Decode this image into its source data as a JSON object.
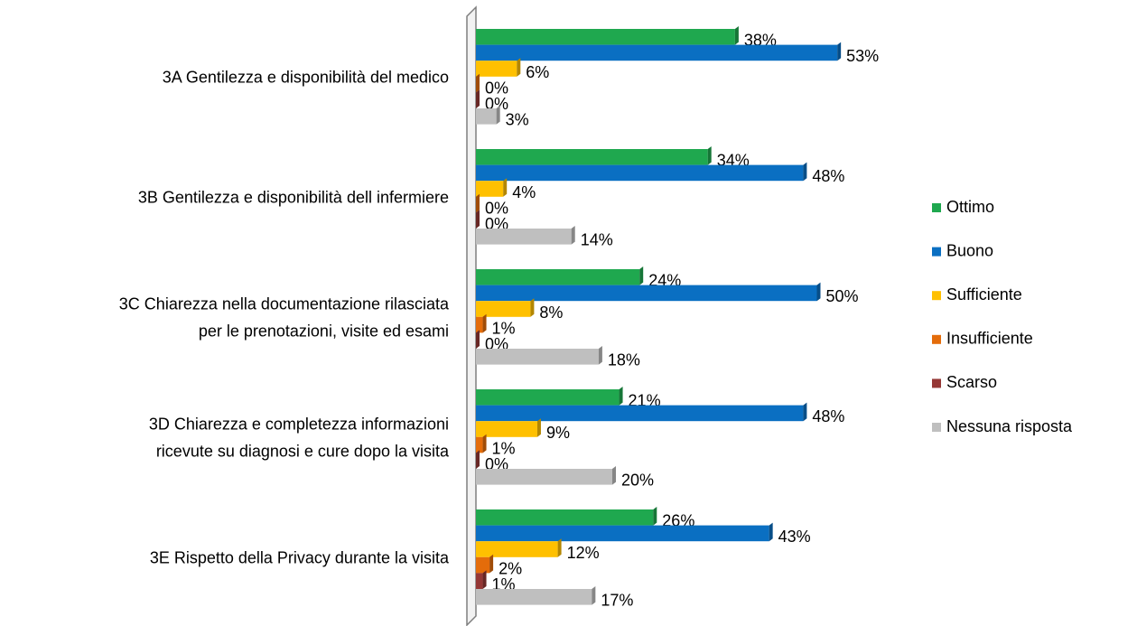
{
  "chart_data": {
    "type": "bar",
    "orientation": "horizontal",
    "categories": [
      [
        "3A Gentilezza e disponibilità del medico"
      ],
      [
        "3B Gentilezza e disponibilità dell infermiere"
      ],
      [
        "3C Chiarezza nella documentazione rilasciata",
        "per le prenotazioni, visite ed esami"
      ],
      [
        "3D Chiarezza e completezza informazioni",
        "ricevute su diagnosi e cure dopo la visita"
      ],
      [
        "3E Rispetto della Privacy durante la visita"
      ]
    ],
    "series": [
      {
        "name": "Ottimo",
        "color": "#1fa84f",
        "values": [
          38,
          34,
          24,
          21,
          26
        ],
        "value_labels": [
          "38%",
          "34%",
          "24%",
          "21%",
          "26%"
        ]
      },
      {
        "name": "Buono",
        "color": "#0a6fc2",
        "values": [
          53,
          48,
          50,
          48,
          43
        ],
        "value_labels": [
          "53%",
          "48%",
          "50%",
          "48%",
          "43%"
        ]
      },
      {
        "name": "Sufficiente",
        "color": "#ffc000",
        "values": [
          6,
          4,
          8,
          9,
          12
        ],
        "value_labels": [
          "6%",
          "4%",
          "8%",
          "9%",
          "12%"
        ]
      },
      {
        "name": "Insufficiente",
        "color": "#e46c0a",
        "values": [
          0,
          0,
          1,
          1,
          2
        ],
        "value_labels": [
          "0%",
          "0%",
          "1%",
          "1%",
          "2%"
        ]
      },
      {
        "name": "Scarso",
        "color": "#953735",
        "values": [
          0,
          0,
          0,
          0,
          1
        ],
        "value_labels": [
          "0%",
          "0%",
          "0%",
          "0%",
          "1%"
        ]
      },
      {
        "name": "Nessuna risposta",
        "color": "#bfbfbf",
        "values": [
          3,
          14,
          18,
          20,
          17
        ],
        "value_labels": [
          "3%",
          "14%",
          "18%",
          "20%",
          "17%"
        ]
      }
    ],
    "xlim": [
      0,
      60
    ],
    "legend": "right"
  }
}
